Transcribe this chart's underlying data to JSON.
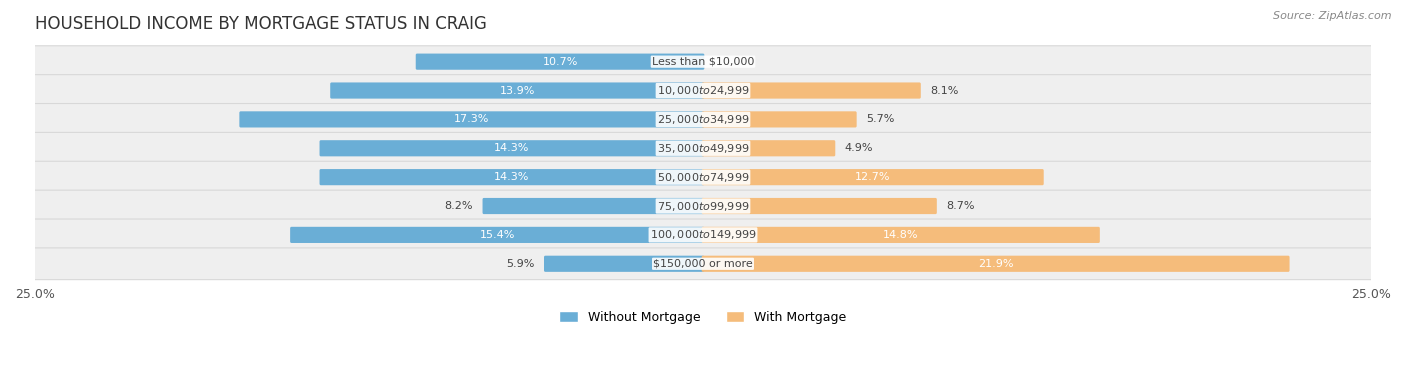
{
  "title": "HOUSEHOLD INCOME BY MORTGAGE STATUS IN CRAIG",
  "source": "Source: ZipAtlas.com",
  "categories": [
    "Less than $10,000",
    "$10,000 to $24,999",
    "$25,000 to $34,999",
    "$35,000 to $49,999",
    "$50,000 to $74,999",
    "$75,000 to $99,999",
    "$100,000 to $149,999",
    "$150,000 or more"
  ],
  "without_mortgage": [
    10.7,
    13.9,
    17.3,
    14.3,
    14.3,
    8.2,
    15.4,
    5.9
  ],
  "with_mortgage": [
    0.0,
    8.1,
    5.7,
    4.9,
    12.7,
    8.7,
    14.8,
    21.9
  ],
  "blue_color": "#6aaed6",
  "orange_color": "#f5bc7b",
  "axis_limit": 25.0,
  "title_fontsize": 12,
  "cat_label_fontsize": 8.0,
  "val_label_fontsize": 8.0,
  "tick_fontsize": 9,
  "legend_fontsize": 9,
  "row_bg_color": "#efefef",
  "row_border_color": "#d8d8d8"
}
